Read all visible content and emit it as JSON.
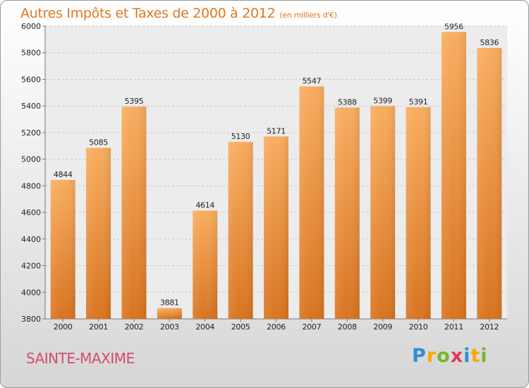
{
  "title": "Autres Impôts et Taxes de 2000 à 2012",
  "subtitle": "(en milliers d'€)",
  "city": "SAINTE-MAXIME",
  "logo": {
    "letters": [
      "P",
      "r",
      "o",
      "x",
      "i",
      "t",
      "i"
    ],
    "colors": [
      "#2a8fd6",
      "#f7a800",
      "#7ab52b",
      "#e03a5a",
      "#2a8fd6",
      "#f7a800",
      "#7ab52b"
    ]
  },
  "colors": {
    "bar_top": "#f9ad60",
    "bar_bottom": "#d87420",
    "title": "#e07820",
    "city": "#d64a6e"
  },
  "chart_data": {
    "type": "bar",
    "title": "Autres Impôts et Taxes de 2000 à 2012",
    "subtitle": "(en milliers d'€)",
    "categories": [
      "2000",
      "2001",
      "2002",
      "2003",
      "2004",
      "2005",
      "2006",
      "2007",
      "2008",
      "2009",
      "2010",
      "2011",
      "2012"
    ],
    "values": [
      4844,
      5085,
      5395,
      3881,
      4614,
      5130,
      5171,
      5547,
      5388,
      5399,
      5391,
      5956,
      5836
    ],
    "ylim": [
      3800,
      6000
    ],
    "yticks": [
      3800,
      4000,
      4200,
      4400,
      4600,
      4800,
      5000,
      5200,
      5400,
      5600,
      5800,
      6000
    ],
    "grid": true,
    "xlabel": "",
    "ylabel": ""
  }
}
